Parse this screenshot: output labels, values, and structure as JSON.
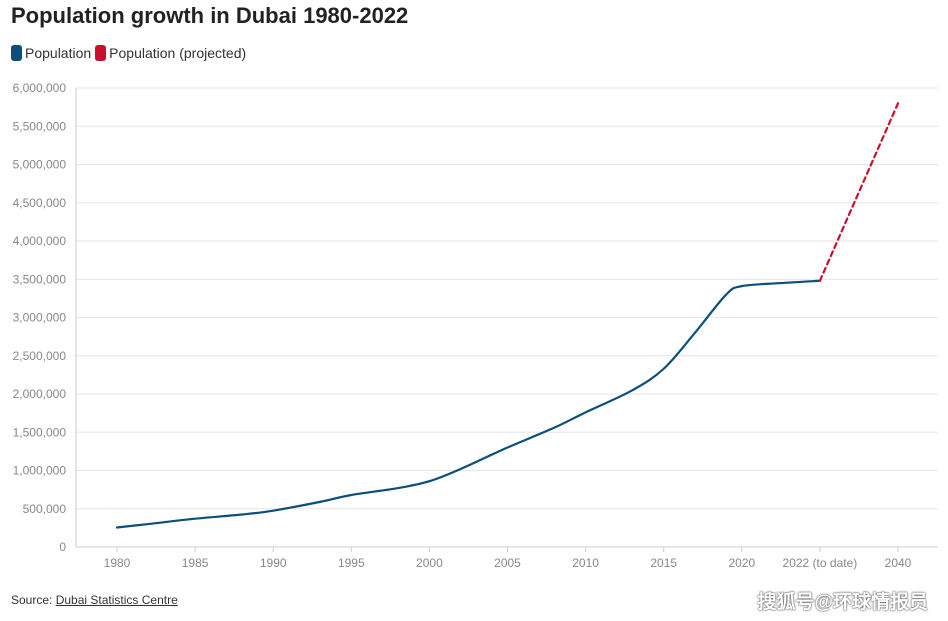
{
  "chart_data": {
    "type": "line",
    "title": "Population growth in Dubai 1980-2022",
    "xlabel": "",
    "ylabel": "",
    "categories": [
      "1980",
      "1985",
      "1990",
      "1995",
      "2000",
      "2005",
      "2010",
      "2015",
      "2020",
      "2022 (to date)",
      "2040"
    ],
    "ylim": [
      0,
      6000000
    ],
    "yticks": [
      "0",
      "500,000",
      "1,000,000",
      "1,500,000",
      "2,000,000",
      "2,500,000",
      "3,000,000",
      "3,500,000",
      "4,000,000",
      "4,500,000",
      "5,000,000",
      "5,500,000",
      "6,000,000"
    ],
    "grid": true,
    "legend_position": "top-left",
    "series": [
      {
        "name": "Population",
        "color": "#0b4f7a",
        "style": "solid",
        "points": [
          [
            1980,
            255000
          ],
          [
            1982,
            300000
          ],
          [
            1985,
            370000
          ],
          [
            1988,
            425000
          ],
          [
            1990,
            475000
          ],
          [
            1993,
            590000
          ],
          [
            1995,
            680000
          ],
          [
            1998,
            770000
          ],
          [
            2000,
            860000
          ],
          [
            2002,
            1020000
          ],
          [
            2005,
            1300000
          ],
          [
            2008,
            1560000
          ],
          [
            2010,
            1760000
          ],
          [
            2013,
            2050000
          ],
          [
            2015,
            2330000
          ],
          [
            2017,
            2800000
          ],
          [
            2019,
            3300000
          ],
          [
            2020,
            3410000
          ],
          [
            2021,
            3450000
          ],
          [
            2022,
            3480000
          ]
        ]
      },
      {
        "name": "Population (projected)",
        "color": "#c8102e",
        "style": "dashed",
        "points": [
          [
            2022,
            3480000
          ],
          [
            2040,
            5800000
          ]
        ]
      }
    ]
  },
  "source": {
    "prefix": "Source:",
    "link_text": "Dubai Statistics Centre"
  },
  "watermark": "搜狐号@环球情报员"
}
